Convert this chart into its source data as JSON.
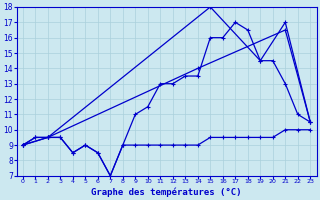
{
  "title": "Graphe des températures (°C)",
  "bg_color": "#cce8f0",
  "line_color": "#0000cc",
  "grid_color": "#aad0dc",
  "xlim": [
    -0.5,
    23.5
  ],
  "ylim": [
    7,
    18
  ],
  "xticks": [
    0,
    1,
    2,
    3,
    4,
    5,
    6,
    7,
    8,
    9,
    10,
    11,
    12,
    13,
    14,
    15,
    16,
    17,
    18,
    19,
    20,
    21,
    22,
    23
  ],
  "yticks": [
    7,
    8,
    9,
    10,
    11,
    12,
    13,
    14,
    15,
    16,
    17,
    18
  ],
  "line1_x": [
    0,
    1,
    2,
    3,
    4,
    5,
    6,
    7,
    8,
    9,
    10,
    11,
    12,
    13,
    14,
    15,
    16,
    17,
    18,
    19,
    20,
    21,
    22,
    23
  ],
  "line1_y": [
    9,
    9.5,
    9.5,
    9.5,
    8.5,
    9,
    8.5,
    7,
    9,
    9,
    9,
    9,
    9,
    9,
    9,
    9.5,
    9.5,
    9.5,
    9.5,
    9.5,
    9.5,
    10,
    10,
    10
  ],
  "line2_x": [
    0,
    1,
    2,
    3,
    4,
    5,
    6,
    7,
    8,
    9,
    10,
    11,
    12,
    13,
    14,
    15,
    16,
    17,
    18,
    19,
    20,
    21,
    22,
    23
  ],
  "line2_y": [
    9,
    9.5,
    9.5,
    9.5,
    8.5,
    9,
    8.5,
    7,
    9,
    11,
    11.5,
    13,
    13,
    13.5,
    13.5,
    16,
    16,
    17,
    16.5,
    14.5,
    14.5,
    13,
    11,
    10.5
  ],
  "line3_x": [
    0,
    2,
    14,
    21,
    23
  ],
  "line3_y": [
    9,
    9.5,
    14,
    16.5,
    10.5
  ],
  "line4_x": [
    0,
    2,
    15,
    19,
    21,
    23
  ],
  "line4_y": [
    9,
    9.5,
    18,
    14.5,
    17,
    10.5
  ]
}
